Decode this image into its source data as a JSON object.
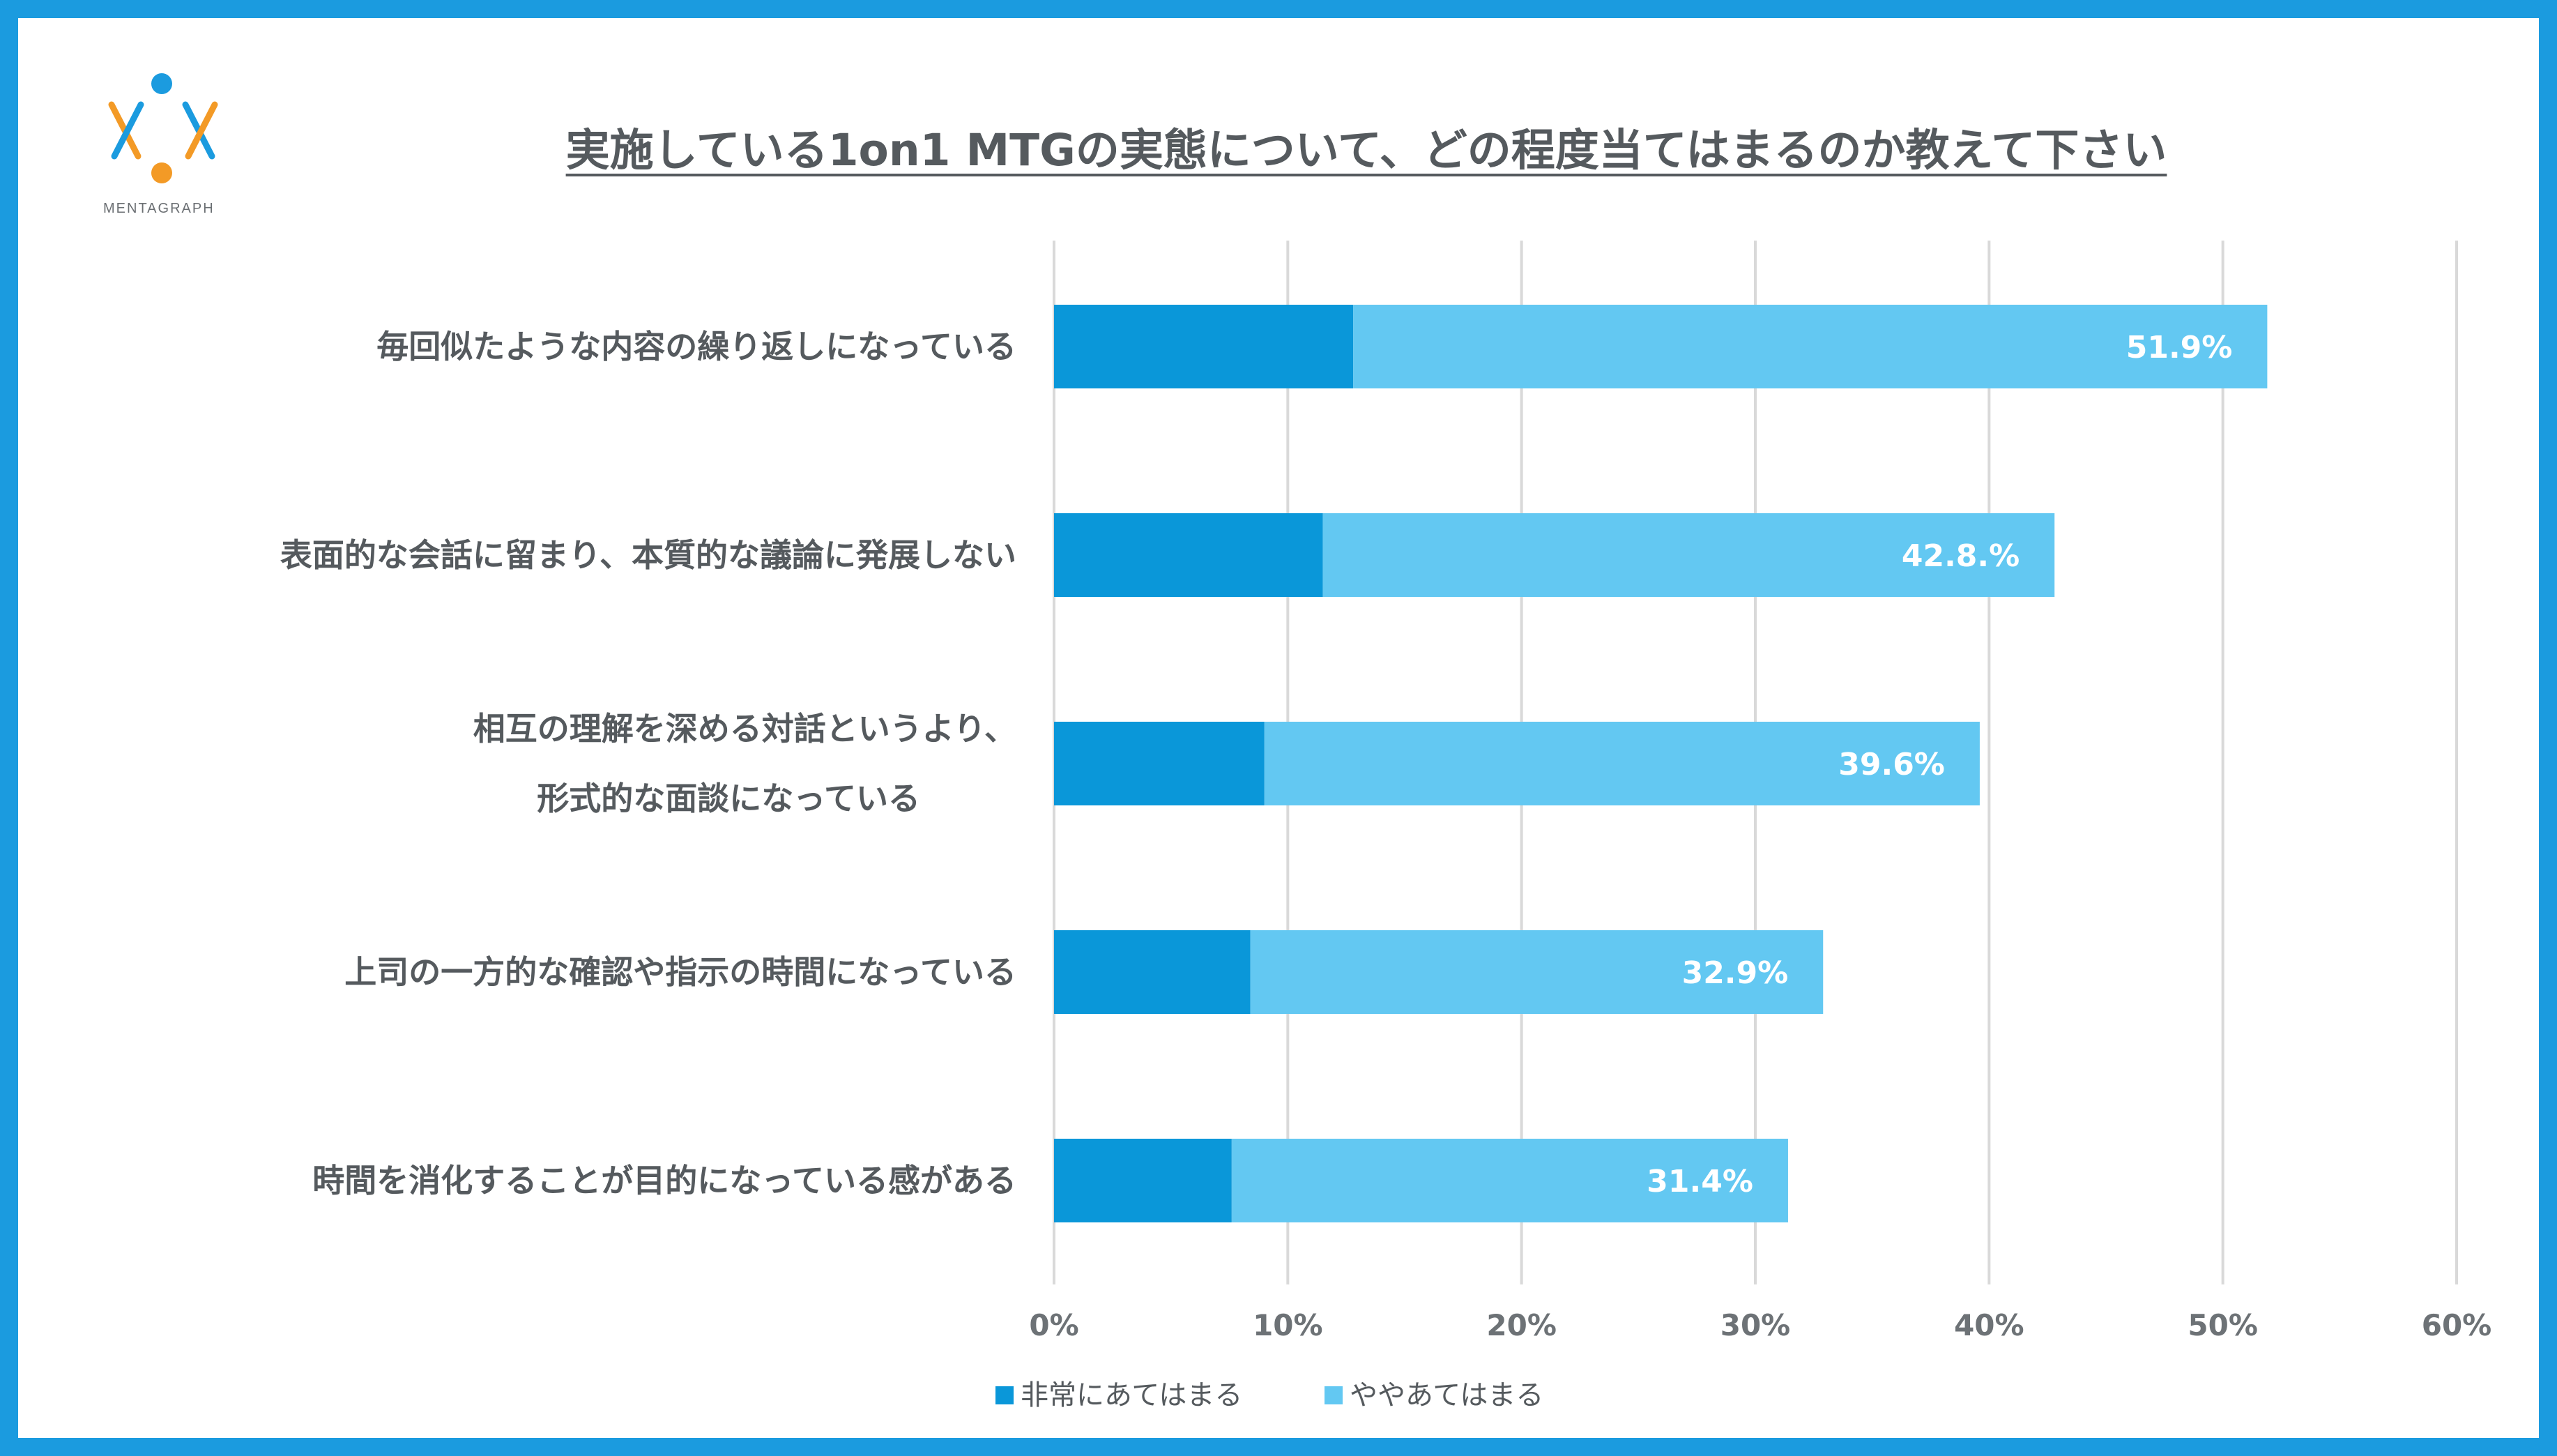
{
  "brand": {
    "logo_text": "MENTAGRAPH",
    "colors": {
      "frame": "#1b9bdf",
      "logo_blue": "#1b9bdf",
      "logo_orange": "#f39a26"
    }
  },
  "chart_data": {
    "type": "bar",
    "orientation": "horizontal",
    "stacked": true,
    "title": "実施している1on1 MTGの実態について、どの程度当てはまるのか教えて下さい",
    "categories": [
      [
        "毎回似たような内容の繰り返しになっている"
      ],
      [
        "表面的な会話に留まり、本質的な議論に発展しない"
      ],
      [
        "相互の理解を深める対話というより、",
        "形式的な面談になっている"
      ],
      [
        "上司の一方的な確認や指示の時間になっている"
      ],
      [
        "時間を消化することが目的になっている感がある"
      ]
    ],
    "series": [
      {
        "name": "非常にあてはまる",
        "color": "#0a97d9",
        "values": [
          12.8,
          11.5,
          9.0,
          8.4,
          7.6
        ]
      },
      {
        "name": "ややあてはまる",
        "color": "#63c8f2",
        "values": [
          39.1,
          31.3,
          30.6,
          24.5,
          23.8
        ]
      }
    ],
    "totals": [
      51.9,
      42.8,
      39.6,
      32.9,
      31.4
    ],
    "total_labels": [
      "51.9%",
      "42.8.%",
      "39.6%",
      "32.9%",
      "31.4%"
    ],
    "xlim": [
      0,
      60
    ],
    "xticks": [
      0,
      10,
      20,
      30,
      40,
      50,
      60
    ],
    "xtick_labels": [
      "0%",
      "10%",
      "20%",
      "30%",
      "40%",
      "50%",
      "60%"
    ],
    "grid": "vertical",
    "legend_position": "bottom"
  }
}
